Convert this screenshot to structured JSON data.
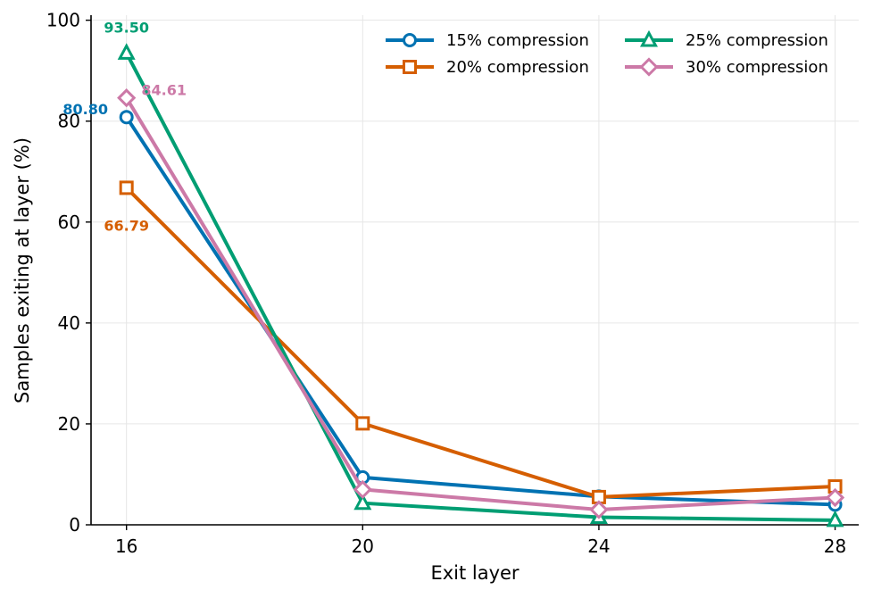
{
  "chart_data": {
    "type": "line",
    "x": [
      16,
      20,
      24,
      28
    ],
    "x_tick_labels": [
      "16",
      "20",
      "24",
      "28"
    ],
    "y_tick_labels": [
      "0",
      "20",
      "40",
      "60",
      "80",
      "100"
    ],
    "xlabel": "Exit layer",
    "ylabel": "Samples exiting at layer (%)",
    "xlim": [
      15.4,
      28.4
    ],
    "ylim": [
      0,
      101
    ],
    "grid": true,
    "legend_position": "top-right",
    "series": [
      {
        "name": "15% compression",
        "color": "#0072B2",
        "marker": "circle",
        "values": [
          80.8,
          9.4,
          5.6,
          4.0
        ]
      },
      {
        "name": "20% compression",
        "color": "#D55E00",
        "marker": "square",
        "values": [
          66.79,
          20.1,
          5.5,
          7.6
        ]
      },
      {
        "name": "25% compression",
        "color": "#009E73",
        "marker": "triangle",
        "values": [
          93.5,
          4.3,
          1.5,
          0.9
        ]
      },
      {
        "name": "30% compression",
        "color": "#CC79A7",
        "marker": "diamond",
        "values": [
          84.61,
          7.0,
          3.0,
          5.4
        ]
      }
    ],
    "annotations": [
      {
        "text": "80.80",
        "series": 0,
        "x": 16,
        "y": 80.8,
        "color": "#0072B2"
      },
      {
        "text": "66.79",
        "series": 1,
        "x": 16,
        "y": 66.79,
        "color": "#D55E00"
      },
      {
        "text": "93.50",
        "series": 2,
        "x": 16,
        "y": 93.5,
        "color": "#009E73"
      },
      {
        "text": "84.61",
        "series": 3,
        "x": 16,
        "y": 84.61,
        "color": "#CC79A7"
      }
    ]
  }
}
